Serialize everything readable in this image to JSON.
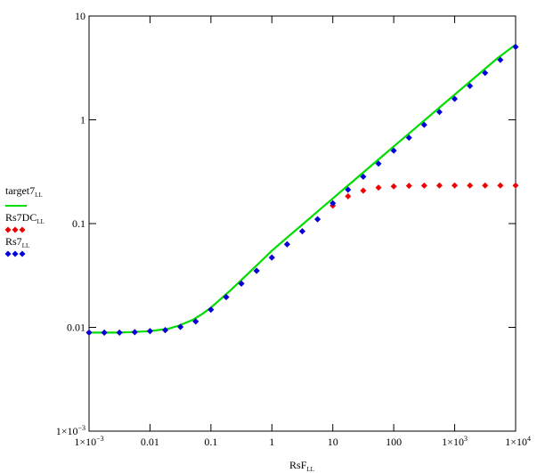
{
  "chart_data": {
    "type": "line",
    "xscale": "log",
    "yscale": "log",
    "xlim": [
      0.001,
      10000
    ],
    "ylim": [
      0.001,
      10
    ],
    "x_ticks": [
      {
        "value": 0.001,
        "base": "1×10",
        "exp": "−3"
      },
      {
        "value": 0.01,
        "label": "0.01"
      },
      {
        "value": 0.1,
        "label": "0.1"
      },
      {
        "value": 1,
        "label": "1"
      },
      {
        "value": 10,
        "label": "10"
      },
      {
        "value": 100,
        "label": "100"
      },
      {
        "value": 1000,
        "base": "1×10",
        "exp": "3"
      },
      {
        "value": 10000,
        "base": "1×10",
        "exp": "4"
      }
    ],
    "y_ticks": [
      {
        "value": 0.001,
        "base": "1×10",
        "exp": "−3"
      },
      {
        "value": 0.01,
        "label": "0.01"
      },
      {
        "value": 0.1,
        "label": "0.1"
      },
      {
        "value": 1,
        "label": "1"
      },
      {
        "value": 10,
        "label": "10"
      }
    ],
    "xlabel": {
      "main": "RsF",
      "sub": "LL"
    },
    "grid": false,
    "legend_position": "left",
    "series": [
      {
        "name": "target7",
        "sub": "LL",
        "style": "line",
        "color": "#00dd00",
        "x": [
          0.001,
          0.002,
          0.003,
          0.005,
          0.01,
          0.02,
          0.03,
          0.05,
          0.07,
          0.1,
          0.2,
          0.3,
          0.5,
          0.7,
          1,
          2,
          3,
          5,
          10,
          20,
          50,
          100,
          200,
          500,
          1000,
          2000,
          5000,
          10000
        ],
        "y": [
          0.0089,
          0.0089,
          0.0089,
          0.009,
          0.0092,
          0.0097,
          0.0104,
          0.0118,
          0.0133,
          0.0155,
          0.0222,
          0.0278,
          0.037,
          0.0447,
          0.0548,
          0.0778,
          0.0952,
          0.1232,
          0.1746,
          0.247,
          0.391,
          0.553,
          0.782,
          1.237,
          1.75,
          2.47,
          3.91,
          5.3
        ]
      },
      {
        "name": "Rs7DC",
        "sub": "LL",
        "style": "markers",
        "color": "#ee0000",
        "x": [
          0.001,
          0.00178,
          0.00316,
          0.00562,
          0.01,
          0.0178,
          0.0316,
          0.0562,
          0.1,
          0.178,
          0.316,
          0.562,
          1,
          1.78,
          3.16,
          5.62,
          10,
          17.8,
          31.6,
          56.2,
          100,
          178,
          316,
          562,
          1000,
          1780,
          3160,
          5620,
          10000
        ],
        "y": [
          0.0089,
          0.0089,
          0.0089,
          0.009,
          0.0092,
          0.0094,
          0.0101,
          0.0114,
          0.0148,
          0.0196,
          0.0264,
          0.0351,
          0.0471,
          0.0632,
          0.0843,
          0.1101,
          0.1488,
          0.183,
          0.208,
          0.222,
          0.228,
          0.231,
          0.232,
          0.233,
          0.233,
          0.233,
          0.233,
          0.233,
          0.233
        ]
      },
      {
        "name": "Rs7",
        "sub": "LL",
        "style": "markers",
        "color": "#0000dd",
        "x": [
          0.001,
          0.00178,
          0.00316,
          0.00562,
          0.01,
          0.0178,
          0.0316,
          0.0562,
          0.1,
          0.178,
          0.316,
          0.562,
          1,
          1.78,
          3.16,
          5.62,
          10,
          17.8,
          31.6,
          56.2,
          100,
          178,
          316,
          562,
          1000,
          1780,
          3160,
          5620,
          10000
        ],
        "y": [
          0.0089,
          0.0089,
          0.0089,
          0.009,
          0.0092,
          0.0094,
          0.0101,
          0.0114,
          0.0148,
          0.0196,
          0.0264,
          0.0351,
          0.0471,
          0.0632,
          0.0843,
          0.1101,
          0.1573,
          0.212,
          0.283,
          0.378,
          0.505,
          0.672,
          0.894,
          1.19,
          1.59,
          2.12,
          2.83,
          3.78,
          5.05
        ]
      }
    ]
  }
}
